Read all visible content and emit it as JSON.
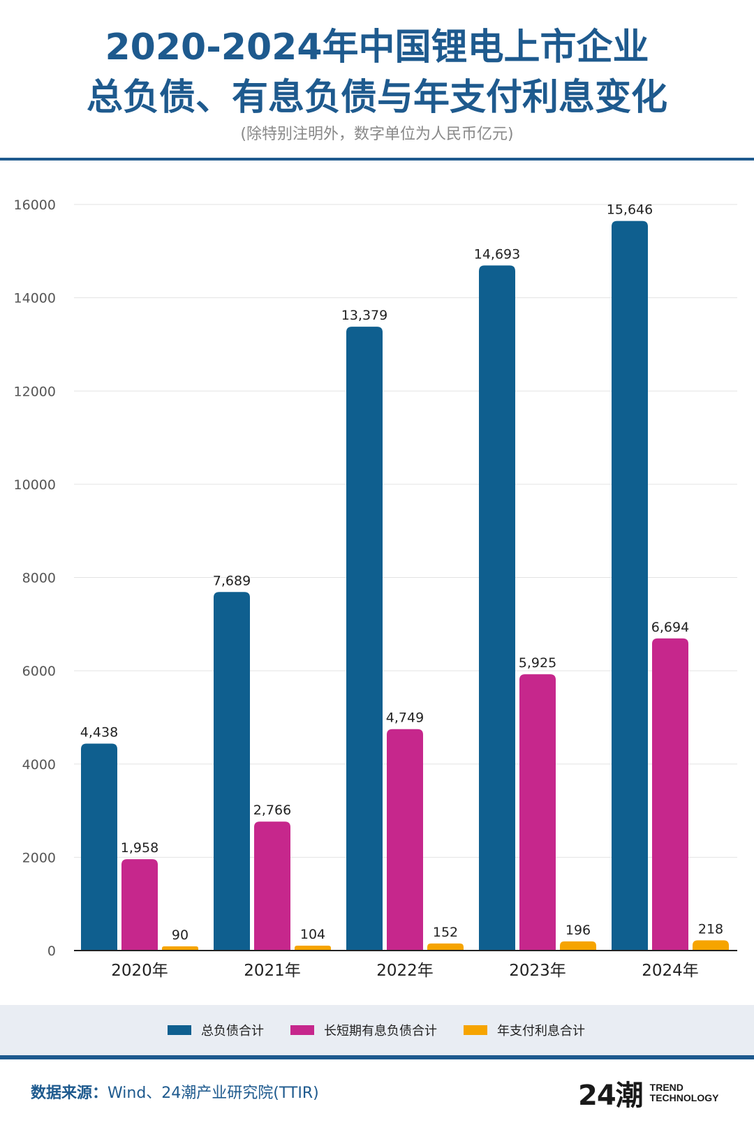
{
  "header": {
    "title_line1": "2020-2024年中国锂电上市企业",
    "title_line2": "总负债、有息负债与年支付利息变化",
    "subtitle": "(除特别注明外，数字单位为人民币亿元)"
  },
  "colors": {
    "title": "#1e5a8e",
    "series": [
      "#0f5f8f",
      "#c6278c",
      "#f6a400"
    ]
  },
  "chart_data": {
    "type": "bar",
    "categories": [
      "2020年",
      "2021年",
      "2022年",
      "2023年",
      "2024年"
    ],
    "series": [
      {
        "name": "总负债合计",
        "values": [
          4438,
          7689,
          13379,
          14693,
          15646
        ],
        "labels": [
          "4,438",
          "7,689",
          "13,379",
          "14,693",
          "15,646"
        ]
      },
      {
        "name": "长短期有息负债合计",
        "values": [
          1958,
          2766,
          4749,
          5925,
          6694
        ],
        "labels": [
          "1,958",
          "2,766",
          "4,749",
          "5,925",
          "6,694"
        ]
      },
      {
        "name": "年支付利息合计",
        "values": [
          90,
          104,
          152,
          196,
          218
        ],
        "labels": [
          "90",
          "104",
          "152",
          "196",
          "218"
        ]
      }
    ],
    "yticks": [
      0,
      2000,
      4000,
      6000,
      8000,
      10000,
      12000,
      14000,
      16000
    ],
    "ylim": [
      0,
      16000
    ],
    "grid": true,
    "legend_position": "bottom"
  },
  "footer": {
    "source_label": "数据来源：",
    "source_text": "Wind、24潮产业研究院(TTIR)",
    "logo_mark": "24潮",
    "logo_line1": "TREND",
    "logo_line2": "TECHNOLOGY"
  }
}
